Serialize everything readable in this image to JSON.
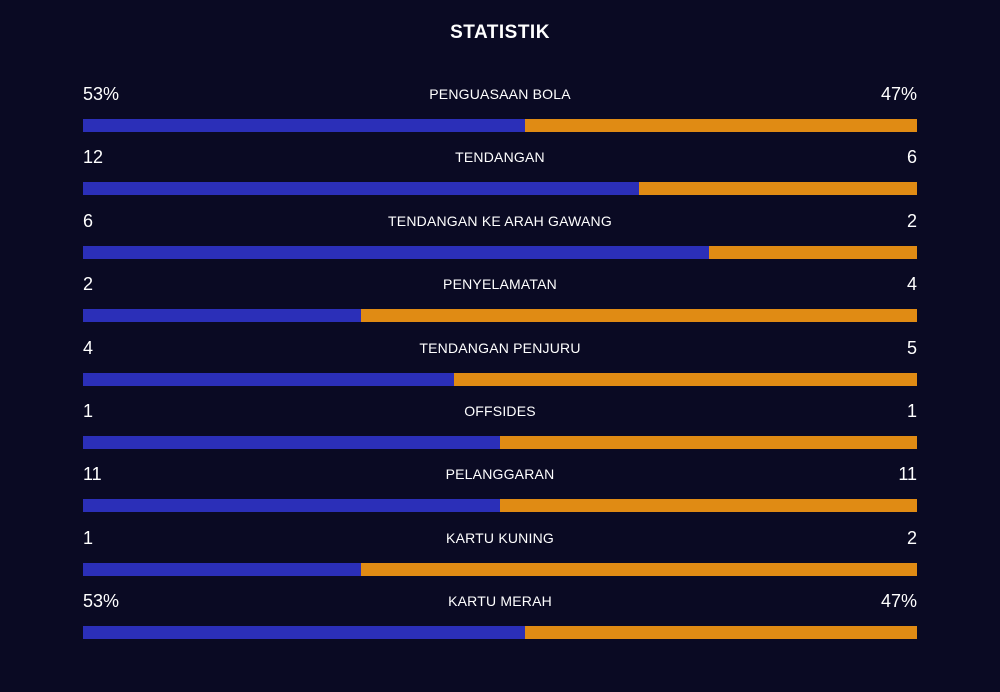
{
  "title": "STATISTIK",
  "colors": {
    "background": "#0a0a23",
    "home": "#2b2fb8",
    "away": "#e08b14"
  },
  "stats": [
    {
      "label": "PENGUASAAN BOLA",
      "home": "53%",
      "away": "47%",
      "home_share": 0.53
    },
    {
      "label": "TENDANGAN",
      "home": "12",
      "away": "6",
      "home_share": 0.6667
    },
    {
      "label": "TENDANGAN KE ARAH GAWANG",
      "home": "6",
      "away": "2",
      "home_share": 0.75
    },
    {
      "label": "PENYELAMATAN",
      "home": "2",
      "away": "4",
      "home_share": 0.3333
    },
    {
      "label": "TENDANGAN PENJURU",
      "home": "4",
      "away": "5",
      "home_share": 0.4444
    },
    {
      "label": "OFFSIDES",
      "home": "1",
      "away": "1",
      "home_share": 0.5
    },
    {
      "label": "PELANGGARAN",
      "home": "11",
      "away": "11",
      "home_share": 0.5
    },
    {
      "label": "KARTU KUNING",
      "home": "1",
      "away": "2",
      "home_share": 0.3333
    },
    {
      "label": "KARTU MERAH",
      "home": "53%",
      "away": "47%",
      "home_share": 0.53
    }
  ]
}
